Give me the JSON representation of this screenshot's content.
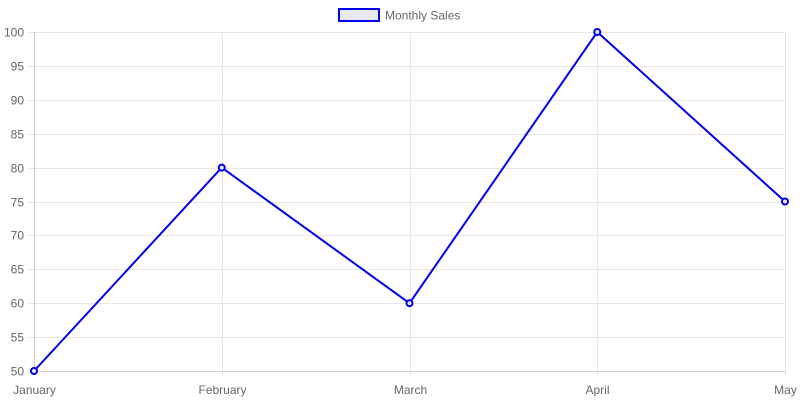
{
  "chart_data": {
    "type": "line",
    "categories": [
      "January",
      "February",
      "March",
      "April",
      "May"
    ],
    "series": [
      {
        "name": "Monthly Sales",
        "values": [
          50,
          80,
          60,
          100,
          75
        ]
      }
    ],
    "ylim": [
      50,
      100
    ],
    "yticks": [
      50,
      55,
      60,
      65,
      70,
      75,
      80,
      85,
      90,
      95,
      100
    ],
    "grid": true,
    "legend_position": "top-center"
  },
  "colors": {
    "line": "#0000ee",
    "legend_fill": "#eaeaf2",
    "grid": "#e6e6e6",
    "axis": "#cccccc"
  }
}
